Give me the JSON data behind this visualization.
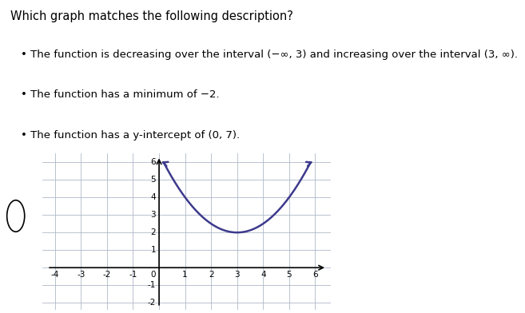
{
  "title": "Which graph matches the following description?",
  "description_lines": [
    "The function is decreasing over the interval (−∞, 3) and increasing over the interval (3, ∞).",
    "The function has a minimum of −2.",
    "The function has a y-intercept of (0, 7)."
  ],
  "curve_color": "#3d3a8c",
  "curve_linewidth": 1.8,
  "xmin": -4,
  "xmax": 6,
  "ymin": -2,
  "ymax": 6,
  "xticks": [
    -4,
    -3,
    -2,
    -1,
    0,
    1,
    2,
    3,
    4,
    5,
    6
  ],
  "yticks": [
    -2,
    -1,
    0,
    1,
    2,
    3,
    4,
    5,
    6
  ],
  "grid_color": "#b0b8c8",
  "bg_color": "#e8ecf0",
  "vertex_x": 3,
  "vertex_y": 2,
  "a_coeff": 0.5
}
